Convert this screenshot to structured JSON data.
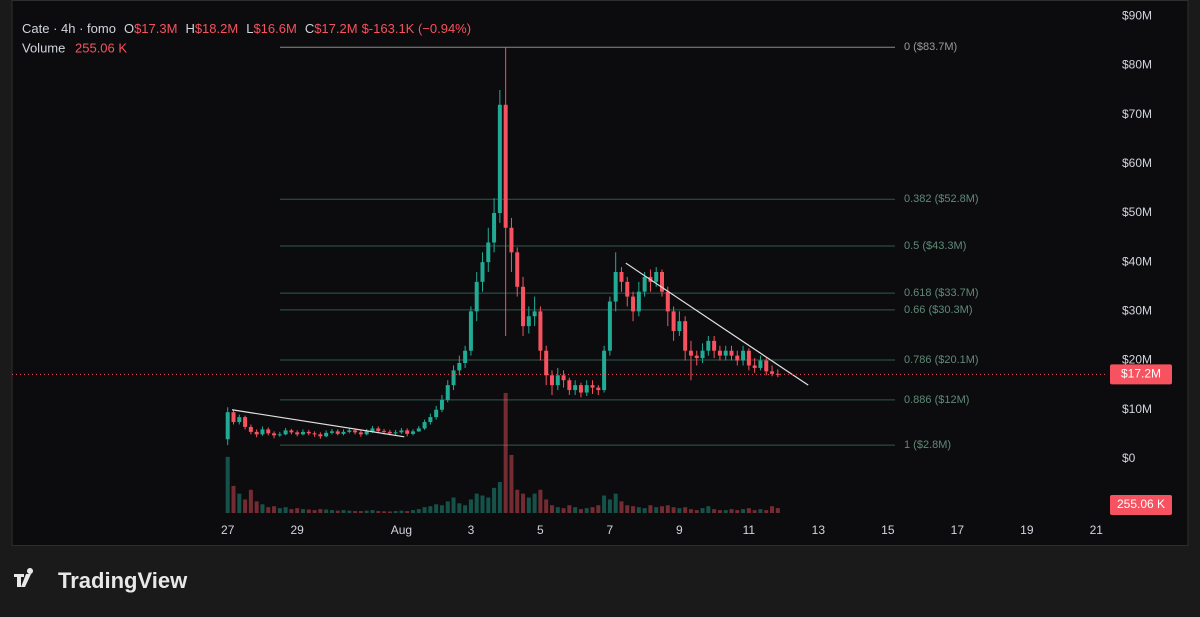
{
  "chart_data": {
    "type": "candlestick",
    "header": {
      "symbol": "Cate · 4h · fomo",
      "ohlc": [
        {
          "key": "O",
          "value": "$17.3M"
        },
        {
          "key": "H",
          "value": "$18.2M"
        },
        {
          "key": "L",
          "value": "$16.6M"
        },
        {
          "key": "C",
          "value": "$17.2M"
        }
      ],
      "change": "$-163.1K (−0.94%)",
      "volume_name": "Volume",
      "volume_value": "255.06 K"
    },
    "x": [
      0,
      4,
      8,
      12,
      16,
      20,
      24,
      28,
      32,
      36,
      40,
      44,
      48,
      52,
      56,
      60,
      64,
      68,
      72,
      76,
      80,
      84,
      88,
      92,
      96,
      100,
      104,
      108,
      112,
      116,
      120,
      124,
      128,
      132,
      136,
      140,
      144,
      148,
      152,
      156,
      160,
      164,
      168,
      172,
      176,
      180,
      184,
      188,
      192,
      196,
      200,
      204,
      208,
      212,
      216,
      220,
      224,
      228,
      232,
      236,
      240,
      244,
      248,
      252,
      256,
      260,
      264,
      268,
      272,
      276,
      280,
      284,
      288,
      292,
      296,
      300,
      304,
      308,
      312,
      316,
      320,
      324,
      328,
      332,
      336,
      340,
      344,
      348,
      352,
      356,
      360,
      364,
      368,
      372,
      376,
      380
    ],
    "open": [
      4,
      9.5,
      7.5,
      8.5,
      6.5,
      5.5,
      5,
      6,
      5.2,
      4.8,
      5,
      5.8,
      5.4,
      5,
      5.5,
      5.2,
      5,
      4.6,
      5.3,
      5.6,
      5.1,
      5.5,
      5.8,
      5.4,
      5,
      5.6,
      6.2,
      5.7,
      5.5,
      5.2,
      5.4,
      5.8,
      5.1,
      5.6,
      6.2,
      7.5,
      8.5,
      10,
      12,
      15,
      18,
      19.5,
      22,
      30,
      36,
      40,
      44,
      50,
      72,
      47,
      42,
      35,
      27,
      29,
      30,
      22,
      17,
      15,
      17,
      16,
      14,
      15,
      13.5,
      15,
      14.5,
      14,
      22,
      32,
      38,
      36,
      33,
      30,
      34,
      37,
      36,
      38,
      34,
      30,
      26,
      28,
      22,
      21,
      20.5,
      22,
      24,
      22,
      21,
      22,
      21,
      20,
      22,
      19,
      18.5,
      20,
      17.8,
      17.3
    ],
    "high": [
      10.5,
      10,
      9,
      8.8,
      7,
      6,
      6.6,
      6.4,
      5.6,
      5.5,
      6.3,
      6.1,
      5.8,
      6,
      5.9,
      5.6,
      5.4,
      5.8,
      6.1,
      6,
      6,
      6.3,
      6.2,
      5.8,
      6.1,
      6.7,
      6.6,
      6.1,
      5.9,
      5.9,
      6.3,
      6.2,
      6,
      6.7,
      8,
      9.2,
      10.8,
      13,
      16,
      19,
      21,
      23,
      31,
      38,
      42,
      47,
      53,
      75,
      83.7,
      49,
      43,
      37,
      31,
      33,
      31,
      23,
      18,
      18.5,
      18,
      16.5,
      16,
      15.5,
      16,
      16,
      15,
      23,
      33,
      42,
      39,
      37,
      34,
      36,
      38,
      38.5,
      39,
      38.5,
      35,
      31,
      30,
      29,
      24,
      22,
      23.5,
      25,
      25,
      23,
      23,
      23,
      22,
      23,
      22.5,
      20.5,
      21,
      20.5,
      19,
      18.2
    ],
    "low": [
      2.8,
      7,
      7,
      6,
      5,
      4.4,
      4.7,
      4.8,
      4.2,
      4.5,
      4.8,
      5,
      4.6,
      4.8,
      4.8,
      4.5,
      4.1,
      4.4,
      5,
      4.8,
      4.8,
      5.2,
      5,
      4.5,
      4.8,
      5.3,
      5.4,
      5,
      4.8,
      4.8,
      5.1,
      4.6,
      4.8,
      5.5,
      5.9,
      7,
      8,
      9.5,
      11.5,
      14,
      17,
      18.5,
      21,
      28,
      34,
      38,
      42,
      48,
      25,
      38,
      33,
      25,
      25.5,
      27,
      20,
      15,
      13,
      14,
      14.5,
      13,
      13,
      12.5,
      12.8,
      13.2,
      13,
      13.5,
      21,
      30,
      34,
      31,
      28,
      29,
      33,
      34,
      35,
      33,
      27,
      24,
      25,
      20,
      16,
      19,
      19.5,
      21,
      20.5,
      20,
      20,
      20,
      19,
      19,
      18,
      17.5,
      18,
      17,
      16.8,
      16.6
    ],
    "close": [
      9.5,
      7.5,
      8.5,
      6.5,
      5.5,
      5,
      6,
      5.2,
      4.8,
      5,
      5.8,
      5.4,
      5,
      5.5,
      5.2,
      5,
      4.6,
      5.3,
      5.6,
      5.1,
      5.5,
      5.8,
      5.4,
      5,
      5.6,
      6.2,
      5.7,
      5.5,
      5.2,
      5.4,
      5.8,
      5.1,
      5.6,
      6.2,
      7.5,
      8.5,
      10,
      12,
      15,
      18,
      19.5,
      22,
      30,
      36,
      40,
      44,
      50,
      72,
      47,
      42,
      35,
      27,
      29,
      30,
      22,
      17,
      15,
      17,
      16,
      14,
      15,
      13.5,
      15,
      14.5,
      14,
      22,
      32,
      38,
      36,
      33,
      30,
      34,
      37,
      36,
      38,
      34,
      30,
      26,
      28,
      22,
      21,
      20.5,
      22,
      24,
      22,
      21,
      22,
      21,
      20,
      22,
      19,
      18.5,
      20,
      17.8,
      17.3,
      17.2
    ],
    "volume": [
      2900,
      1400,
      1000,
      700,
      1200,
      600,
      450,
      300,
      350,
      250,
      300,
      200,
      250,
      200,
      180,
      150,
      200,
      180,
      150,
      120,
      150,
      120,
      100,
      100,
      120,
      150,
      100,
      90,
      80,
      100,
      120,
      100,
      150,
      200,
      300,
      350,
      450,
      400,
      600,
      800,
      500,
      400,
      700,
      1000,
      900,
      800,
      1300,
      1600,
      6200,
      3000,
      1200,
      1000,
      800,
      1000,
      1200,
      700,
      400,
      300,
      250,
      400,
      300,
      200,
      250,
      300,
      400,
      900,
      700,
      1000,
      600,
      400,
      350,
      300,
      250,
      400,
      300,
      350,
      400,
      300,
      250,
      300,
      200,
      150,
      250,
      350,
      200,
      150,
      150,
      200,
      150,
      200,
      250,
      150,
      200,
      150,
      350,
      255.06
    ],
    "up_color": "#22ab94",
    "down_color": "#f7525f",
    "xlim": [
      -149,
      606
    ],
    "xticks": [
      {
        "value": 0,
        "label": "27"
      },
      {
        "value": 48,
        "label": "29"
      },
      {
        "value": 120,
        "label": "Aug"
      },
      {
        "value": 168,
        "label": "3"
      },
      {
        "value": 216,
        "label": "5"
      },
      {
        "value": 264,
        "label": "7"
      },
      {
        "value": 312,
        "label": "9"
      },
      {
        "value": 360,
        "label": "11"
      },
      {
        "value": 408,
        "label": "13"
      },
      {
        "value": 456,
        "label": "15"
      },
      {
        "value": 504,
        "label": "17"
      },
      {
        "value": 552,
        "label": "19"
      },
      {
        "value": 600,
        "label": "21"
      }
    ],
    "ylim": [
      -17.5,
      93.3
    ],
    "yticks": [
      {
        "value": 0,
        "label": "$0"
      },
      {
        "value": 10,
        "label": "$10M"
      },
      {
        "value": 20,
        "label": "$20M"
      },
      {
        "value": 30,
        "label": "$30M"
      },
      {
        "value": 40,
        "label": "$40M"
      },
      {
        "value": 50,
        "label": "$50M"
      },
      {
        "value": 60,
        "label": "$60M"
      },
      {
        "value": 70,
        "label": "$70M"
      },
      {
        "value": 80,
        "label": "$80M"
      },
      {
        "value": 90,
        "label": "$90M"
      }
    ],
    "last_price": {
      "value": 17.2,
      "label": "$17.2M"
    },
    "fib_levels": [
      {
        "value": 83.7,
        "label": "0 ($83.7M)"
      },
      {
        "value": 52.8,
        "label": "0.382 ($52.8M)"
      },
      {
        "value": 43.3,
        "label": "0.5 ($43.3M)"
      },
      {
        "value": 33.7,
        "label": "0.618 ($33.7M)"
      },
      {
        "value": 30.3,
        "label": "0.66 ($30.3M)"
      },
      {
        "value": 20.1,
        "label": "0.786 ($20.1M)"
      },
      {
        "value": 12,
        "label": "0.886 ($12M)"
      },
      {
        "value": 2.8,
        "label": "1 ($2.8M)"
      }
    ],
    "trendlines": [
      {
        "x": [
          3,
          122
        ],
        "y": [
          10,
          4.5
        ]
      },
      {
        "x": [
          275,
          401
        ],
        "y": [
          39.8,
          15
        ]
      }
    ]
  },
  "branding": "TradingView"
}
